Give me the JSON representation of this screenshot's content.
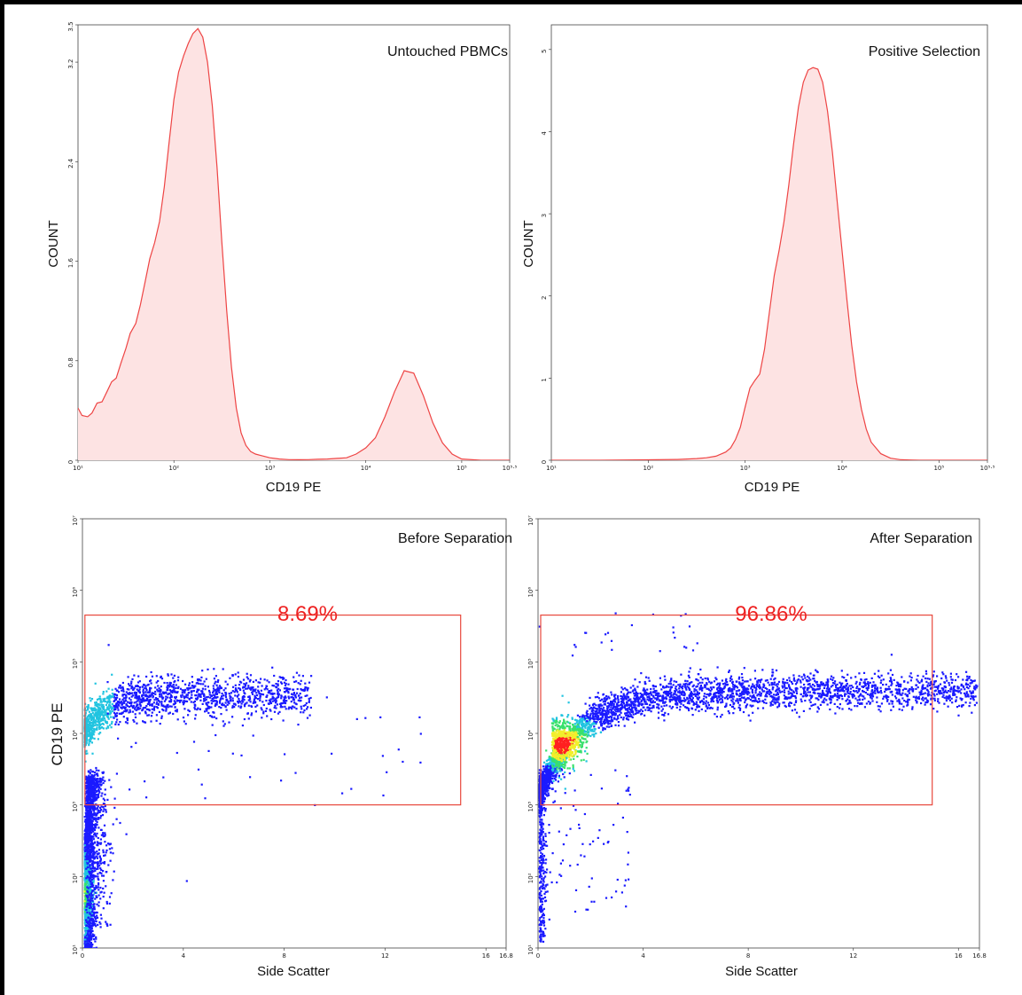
{
  "colors": {
    "histogram_line": "#ee4444",
    "histogram_fill": "#fde3e3",
    "gate": "#e8483c",
    "gate_text": "#ee2222",
    "density_low": "#1a1aff",
    "density_mid": "#21c4e0",
    "density_high": "#ff2020"
  },
  "chart_data": [
    {
      "type": "area",
      "title": "Untouched PBMCs",
      "xlabel": "CD19 PE",
      "ylabel": "COUNT",
      "x_scale": "log",
      "xlim": [
        10,
        316228
      ],
      "ylim": [
        0,
        3.5
      ],
      "x_ticks": [
        "10¹",
        "10²",
        "10³",
        "10⁴",
        "10⁵",
        "10⁵·⁵"
      ],
      "y_ticks": [
        "0",
        "0.8",
        "1.6",
        "2.4",
        "3.2",
        "3.5"
      ],
      "y_tick_values": [
        0,
        0.8,
        1.6,
        2.4,
        3.2,
        3.5
      ],
      "series": [
        {
          "x": [
            10,
            11,
            12.6,
            14,
            15.8,
            17.8,
            20,
            22.4,
            25,
            28,
            31.6,
            35,
            40,
            44.7,
            50,
            56,
            63,
            70.8,
            79.4,
            89,
            100,
            112,
            126,
            141,
            158,
            178,
            200,
            224,
            251,
            282,
            316,
            355,
            398,
            447,
            501,
            562,
            631,
            708,
            794,
            891,
            1000,
            1259,
            1585,
            1995,
            2512,
            3162,
            3981,
            5012,
            6310,
            7943,
            10000,
            12589,
            15849,
            19953,
            25119,
            31623,
            39811,
            50119,
            63096,
            79433,
            100000,
            158489,
            316228
          ],
          "y": [
            0.42,
            0.36,
            0.35,
            0.38,
            0.46,
            0.47,
            0.55,
            0.63,
            0.66,
            0.78,
            0.9,
            1.02,
            1.1,
            1.25,
            1.43,
            1.62,
            1.75,
            1.92,
            2.2,
            2.55,
            2.9,
            3.12,
            3.25,
            3.35,
            3.43,
            3.47,
            3.4,
            3.2,
            2.85,
            2.35,
            1.75,
            1.2,
            0.75,
            0.42,
            0.22,
            0.12,
            0.07,
            0.05,
            0.04,
            0.03,
            0.02,
            0.01,
            0.005,
            0.004,
            0.005,
            0.008,
            0.01,
            0.015,
            0.02,
            0.05,
            0.1,
            0.18,
            0.35,
            0.55,
            0.72,
            0.7,
            0.52,
            0.3,
            0.14,
            0.05,
            0.01,
            0.0,
            0.0
          ]
        }
      ]
    },
    {
      "type": "area",
      "title": "Positive Selection",
      "xlabel": "CD19 PE",
      "ylabel": "COUNT",
      "x_scale": "log",
      "xlim": [
        10,
        316228
      ],
      "ylim": [
        0,
        5.3
      ],
      "x_ticks": [
        "10¹",
        "10²",
        "10³",
        "10⁴",
        "10⁵",
        "10⁵·⁵"
      ],
      "y_ticks": [
        "0",
        "1",
        "2",
        "3",
        "4",
        "5"
      ],
      "y_tick_values": [
        0,
        1,
        2,
        3,
        4,
        5
      ],
      "series": [
        {
          "x": [
            10,
            31.6,
            100,
            200,
            316,
            398,
            501,
            631,
            708,
            794,
            891,
            1000,
            1122,
            1259,
            1413,
            1585,
            1778,
            1995,
            2239,
            2512,
            2818,
            3162,
            3548,
            3981,
            4467,
            5012,
            5623,
            6310,
            7079,
            7943,
            8913,
            10000,
            11220,
            12589,
            14125,
            15849,
            17783,
            19953,
            25119,
            31623,
            39811,
            50119,
            63096,
            100000,
            316228
          ],
          "y": [
            0.0,
            0.0,
            0.005,
            0.01,
            0.02,
            0.03,
            0.05,
            0.1,
            0.15,
            0.25,
            0.4,
            0.65,
            0.88,
            0.97,
            1.05,
            1.35,
            1.8,
            2.25,
            2.55,
            2.9,
            3.35,
            3.85,
            4.3,
            4.6,
            4.75,
            4.78,
            4.76,
            4.6,
            4.25,
            3.75,
            3.15,
            2.55,
            1.95,
            1.4,
            0.95,
            0.62,
            0.38,
            0.22,
            0.08,
            0.025,
            0.008,
            0.003,
            0.0,
            0.0,
            0.0
          ]
        }
      ]
    },
    {
      "type": "scatter",
      "title": "Before Separation",
      "xlabel": "Side Scatter",
      "ylabel": "CD19 PE",
      "y_scale": "log",
      "xlim": [
        0,
        16.8
      ],
      "ylim": [
        10,
        10000000
      ],
      "x_ticks": [
        "0",
        "4",
        "8",
        "12",
        "16",
        "16.8"
      ],
      "x_tick_values": [
        0,
        4,
        8,
        12,
        16,
        16.8
      ],
      "y_ticks": [
        "10¹",
        "10²",
        "10³",
        "10⁴",
        "10⁵",
        "10⁶",
        "10⁷"
      ],
      "gate": {
        "x_range": [
          0.1,
          15
        ],
        "y_range": [
          1000,
          450000
        ],
        "percent": "8.69%"
      },
      "population": "low-SSC dense column of CD19-negative events with a sparse CD19+ arm curving to the right"
    },
    {
      "type": "scatter",
      "title": "After Separation",
      "xlabel": "Side Scatter",
      "ylabel": "",
      "y_scale": "log",
      "xlim": [
        0,
        16.8
      ],
      "ylim": [
        10,
        10000000
      ],
      "x_ticks": [
        "0",
        "4",
        "8",
        "12",
        "16",
        "16.8"
      ],
      "x_tick_values": [
        0,
        4,
        8,
        12,
        16,
        16.8
      ],
      "y_ticks": [
        "10¹",
        "10²",
        "10³",
        "10⁴",
        "10⁵",
        "10⁶",
        "10⁷"
      ],
      "gate": {
        "x_range": [
          0.1,
          15
        ],
        "y_range": [
          1000,
          450000
        ],
        "percent": "96.86%"
      },
      "population": "dense CD19+ population with hot spot at low SSC, curving arm to the right"
    }
  ]
}
